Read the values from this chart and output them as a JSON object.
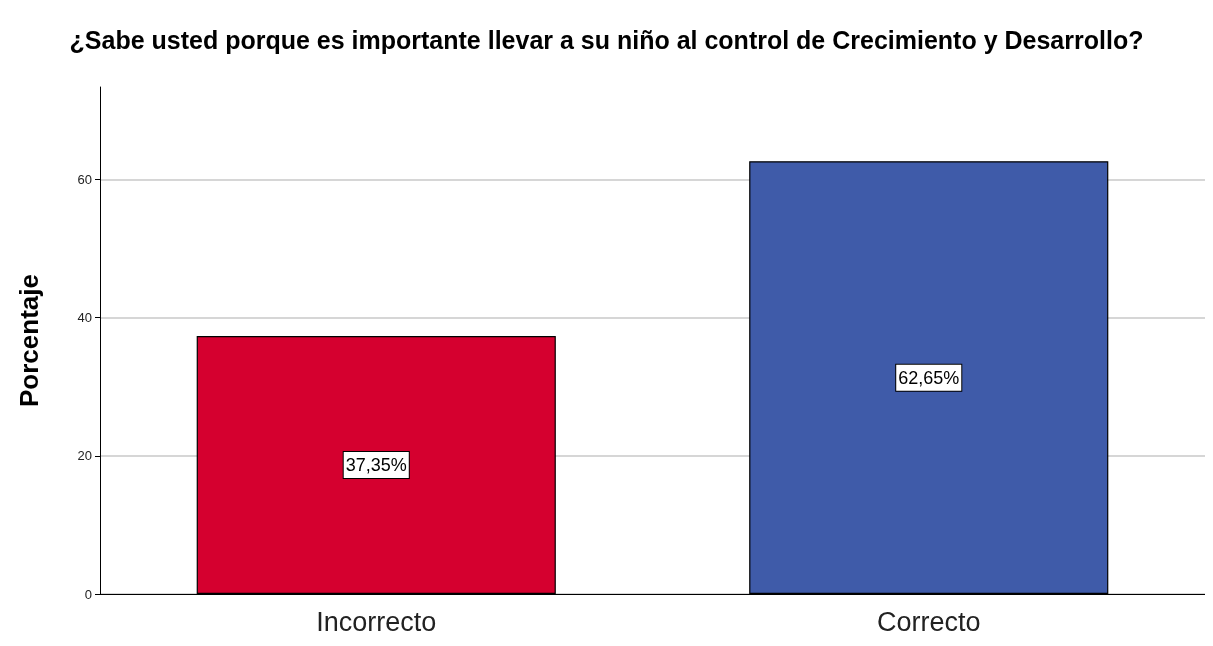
{
  "chart_data": {
    "type": "bar",
    "title": "¿Sabe usted porque es importante llevar a su niño al control de Crecimiento y Desarrollo?",
    "ylabel": "Porcentaje",
    "categories": [
      "Incorrecto",
      "Correcto"
    ],
    "values": [
      37.35,
      62.65
    ],
    "colors": [
      "#d5002f",
      "#3f5ba9"
    ],
    "value_labels": [
      "37,35%",
      "62,65%"
    ],
    "ylim": [
      0,
      73.4
    ],
    "yticks": [
      0,
      20,
      40,
      60
    ],
    "grid": "y"
  }
}
